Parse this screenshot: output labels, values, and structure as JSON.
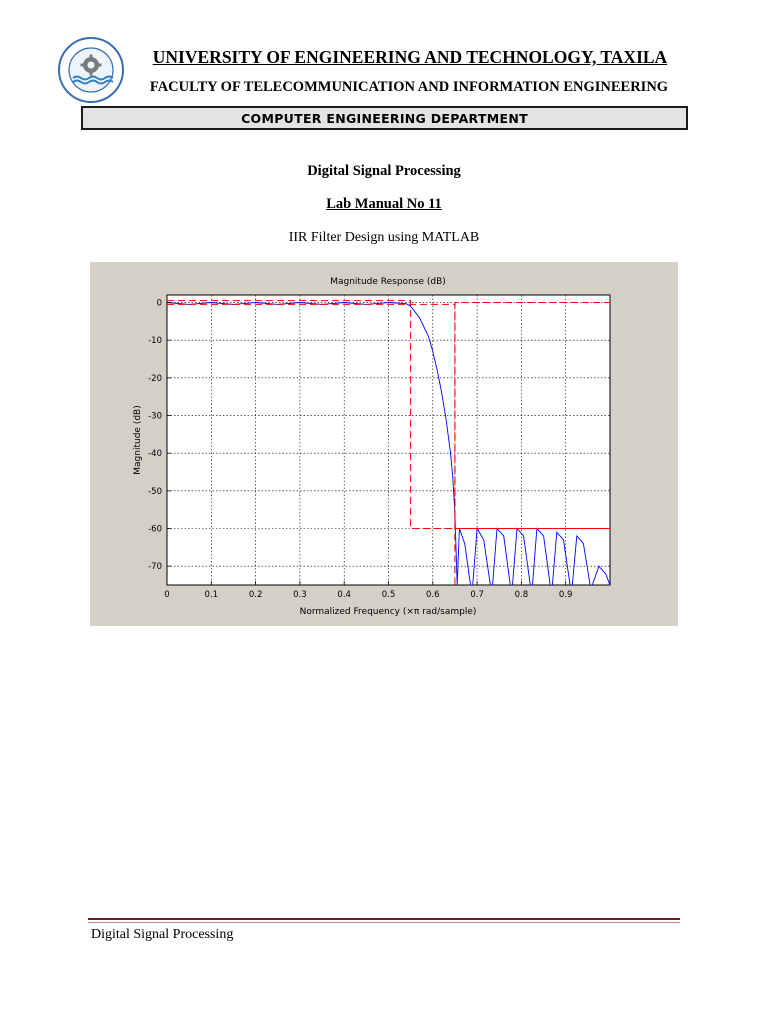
{
  "header": {
    "university": "UNIVERSITY OF ENGINEERING AND TECHNOLOGY, TAXILA",
    "faculty": "FACULTY OF TELECOMMUNICATION AND INFORMATION ENGINEERING",
    "department": "COMPUTER ENGINEERING DEPARTMENT",
    "logo_text": "UNIVERSITY OF ENGINEERING AND TECHNOLOGY TAXILA"
  },
  "document": {
    "course": "Digital Signal Processing",
    "lab": "Lab Manual No 11",
    "subtitle": "IIR Filter Design using MATLAB"
  },
  "chart_data": {
    "type": "line",
    "title": "Magnitude Response (dB)",
    "xlabel": "Normalized Frequency (×π rad/sample)",
    "ylabel": "Magnitude (dB)",
    "xlim": [
      0,
      1
    ],
    "ylim": [
      -75,
      2
    ],
    "xticks": [
      0,
      0.1,
      0.2,
      0.3,
      0.4,
      0.5,
      0.6,
      0.7,
      0.8,
      0.9
    ],
    "yticks": [
      0,
      -10,
      -20,
      -30,
      -40,
      -50,
      -60,
      -70
    ],
    "grid": true,
    "series": [
      {
        "color": "#0000ff",
        "style": "solid",
        "x": [
          0,
          0.05,
          0.1,
          0.15,
          0.2,
          0.25,
          0.3,
          0.35,
          0.4,
          0.45,
          0.5,
          0.54,
          0.55,
          0.57,
          0.59,
          0.6,
          0.61,
          0.62,
          0.63,
          0.64,
          0.645,
          0.65,
          0.655,
          0.66,
          0.672,
          0.685,
          0.69,
          0.7,
          0.715,
          0.73,
          0.735,
          0.745,
          0.76,
          0.775,
          0.78,
          0.79,
          0.805,
          0.82,
          0.825,
          0.835,
          0.85,
          0.865,
          0.87,
          0.88,
          0.895,
          0.91,
          0.915,
          0.925,
          0.94,
          0.955,
          0.96,
          0.975,
          0.99,
          1.0
        ],
        "y": [
          0,
          -0.5,
          0,
          -0.5,
          0,
          -0.5,
          0,
          -0.5,
          0,
          -0.5,
          0,
          -0.3,
          -1,
          -4,
          -9,
          -13,
          -18,
          -24,
          -31,
          -40,
          -46,
          -56,
          -75,
          -60,
          -64,
          -75,
          -75,
          -60,
          -63,
          -75,
          -75,
          -60,
          -62,
          -75,
          -75,
          -60,
          -62,
          -75,
          -75,
          -60,
          -62,
          -75,
          -75,
          -61,
          -63,
          -75,
          -75,
          -62,
          -64,
          -75,
          -75,
          -70,
          -72,
          -75
        ]
      },
      {
        "color": "#ff0000",
        "style": "dashed",
        "x": [
          0,
          0.55,
          0.55,
          0.65,
          0.65,
          1.0
        ],
        "y": [
          0.5,
          0.5,
          -60,
          -60,
          0,
          0
        ]
      },
      {
        "color": "#ff0000",
        "style": "dashed",
        "x": [
          0,
          0.65,
          0.65
        ],
        "y": [
          -0.5,
          -0.5,
          -75
        ]
      },
      {
        "color": "#ff0000",
        "style": "solid",
        "x": [
          0.65,
          1.0
        ],
        "y": [
          -60,
          -60
        ]
      }
    ]
  },
  "footer": {
    "text": "Digital Signal Processing"
  }
}
